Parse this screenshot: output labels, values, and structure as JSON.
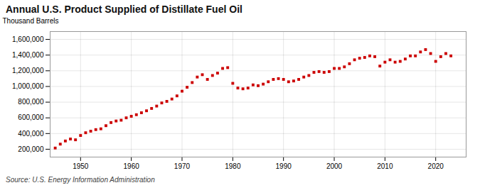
{
  "chart_data": {
    "type": "scatter",
    "title": "Annual U.S. Product Supplied of Distillate Fuel Oil",
    "ylabel": "Thousand Barrels",
    "source": "Source: U.S. Energy Information Administration",
    "color": "#cc0000",
    "marker": "square",
    "grid": true,
    "xlim": [
      1944,
      2026
    ],
    "ylim": [
      100000,
      1700000
    ],
    "xticks": [
      1950,
      1960,
      1970,
      1980,
      1990,
      2000,
      2010,
      2020
    ],
    "yticks": [
      {
        "value": 200000,
        "label": "200,000"
      },
      {
        "value": 400000,
        "label": "400,000"
      },
      {
        "value": 600000,
        "label": "600,000"
      },
      {
        "value": 800000,
        "label": "800,000"
      },
      {
        "value": 1000000,
        "label": "1,000,000"
      },
      {
        "value": 1200000,
        "label": "1,200,000"
      },
      {
        "value": 1400000,
        "label": "1,400,000"
      },
      {
        "value": 1600000,
        "label": "1,600,000"
      }
    ],
    "x": [
      1945,
      1946,
      1947,
      1948,
      1949,
      1950,
      1951,
      1952,
      1953,
      1954,
      1955,
      1956,
      1957,
      1958,
      1959,
      1960,
      1961,
      1962,
      1963,
      1964,
      1965,
      1966,
      1967,
      1968,
      1969,
      1970,
      1971,
      1972,
      1973,
      1974,
      1975,
      1976,
      1977,
      1978,
      1979,
      1980,
      1981,
      1982,
      1983,
      1984,
      1985,
      1986,
      1987,
      1988,
      1989,
      1990,
      1991,
      1992,
      1993,
      1994,
      1995,
      1996,
      1997,
      1998,
      1999,
      2000,
      2001,
      2002,
      2003,
      2004,
      2005,
      2006,
      2007,
      2008,
      2009,
      2010,
      2011,
      2012,
      2013,
      2014,
      2015,
      2016,
      2017,
      2018,
      2019,
      2020,
      2021,
      2022,
      2023
    ],
    "values": [
      215000,
      265000,
      305000,
      330000,
      320000,
      375000,
      410000,
      430000,
      450000,
      460000,
      500000,
      540000,
      560000,
      570000,
      600000,
      620000,
      640000,
      665000,
      690000,
      720000,
      750000,
      790000,
      810000,
      840000,
      880000,
      940000,
      990000,
      1050000,
      1120000,
      1150000,
      1090000,
      1140000,
      1170000,
      1230000,
      1240000,
      1040000,
      980000,
      970000,
      980000,
      1020000,
      1010000,
      1030000,
      1060000,
      1090000,
      1100000,
      1090000,
      1060000,
      1070000,
      1090000,
      1120000,
      1140000,
      1180000,
      1190000,
      1180000,
      1190000,
      1230000,
      1230000,
      1250000,
      1290000,
      1340000,
      1360000,
      1370000,
      1390000,
      1380000,
      1260000,
      1310000,
      1340000,
      1310000,
      1320000,
      1350000,
      1390000,
      1390000,
      1440000,
      1470000,
      1420000,
      1320000,
      1380000,
      1420000,
      1390000
    ]
  }
}
